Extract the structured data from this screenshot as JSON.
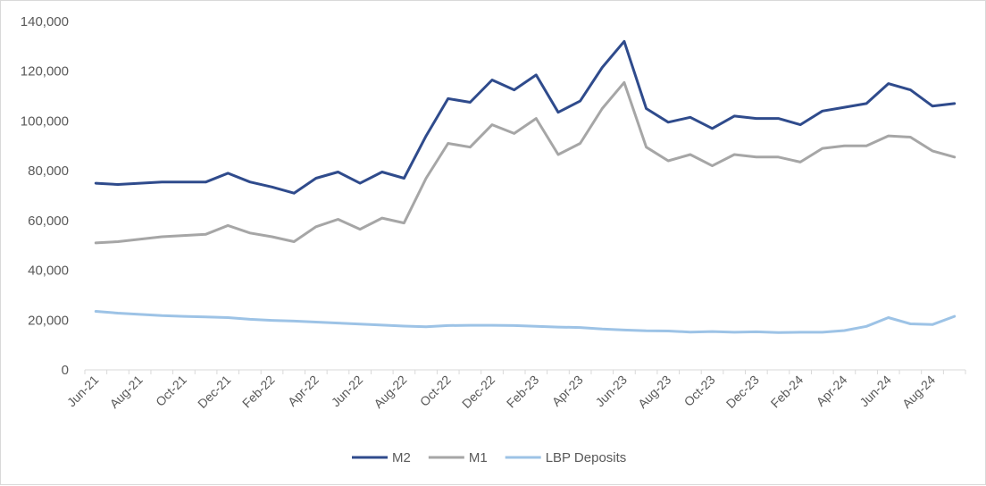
{
  "chart_data": {
    "type": "line",
    "title": "",
    "xlabel": "",
    "ylabel": "",
    "ylim": [
      0,
      140000
    ],
    "y_ticks": [
      0,
      20000,
      40000,
      60000,
      80000,
      100000,
      120000,
      140000
    ],
    "y_tick_labels": [
      "0",
      "20,000",
      "40,000",
      "60,000",
      "80,000",
      "100,000",
      "120,000",
      "140,000"
    ],
    "x": [
      "Jun-21",
      "Jul-21",
      "Aug-21",
      "Sep-21",
      "Oct-21",
      "Nov-21",
      "Dec-21",
      "Jan-22",
      "Feb-22",
      "Mar-22",
      "Apr-22",
      "May-22",
      "Jun-22",
      "Jul-22",
      "Aug-22",
      "Sep-22",
      "Oct-22",
      "Nov-22",
      "Dec-22",
      "Jan-23",
      "Feb-23",
      "Mar-23",
      "Apr-23",
      "May-23",
      "Jun-23",
      "Jul-23",
      "Aug-23",
      "Sep-23",
      "Oct-23",
      "Nov-23",
      "Dec-23",
      "Jan-24",
      "Feb-24",
      "Mar-24",
      "Apr-24",
      "May-24",
      "Jun-24",
      "Jul-24",
      "Aug-24",
      "Sep-24"
    ],
    "x_tick_labels": [
      "Jun-21",
      "Aug-21",
      "Oct-21",
      "Dec-21",
      "Feb-22",
      "Apr-22",
      "Jun-22",
      "Aug-22",
      "Oct-22",
      "Dec-22",
      "Feb-23",
      "Apr-23",
      "Jun-23",
      "Aug-23",
      "Oct-23",
      "Dec-23",
      "Feb-24",
      "Apr-24",
      "Jun-24",
      "Aug-24"
    ],
    "grid": false,
    "legend_position": "bottom",
    "series": [
      {
        "name": "M2",
        "color": "#2f4b8c",
        "values": [
          75000,
          74500,
          75000,
          75500,
          75500,
          75500,
          79000,
          75500,
          73500,
          71000,
          77000,
          79500,
          75000,
          79500,
          77000,
          94000,
          109000,
          107500,
          116500,
          112500,
          118500,
          103500,
          108000,
          121500,
          132000,
          105000,
          99500,
          101500,
          97000,
          102000,
          101000,
          101000,
          98500,
          104000,
          105500,
          107000,
          115000,
          112500,
          106000,
          107000
        ],
        "line_width": 3
      },
      {
        "name": "M1",
        "color": "#a6a6a6",
        "values": [
          51000,
          51500,
          52500,
          53500,
          54000,
          54500,
          58000,
          55000,
          53500,
          51500,
          57500,
          60500,
          56500,
          61000,
          59000,
          77000,
          91000,
          89500,
          98500,
          95000,
          101000,
          86500,
          91000,
          105000,
          115500,
          89500,
          84000,
          86500,
          82000,
          86500,
          85500,
          85500,
          83500,
          89000,
          90000,
          90000,
          94000,
          93500,
          88000,
          85500
        ],
        "line_width": 3
      },
      {
        "name": "LBP Deposits",
        "color": "#9dc3e6",
        "values": [
          23500,
          22800,
          22300,
          21800,
          21500,
          21300,
          21000,
          20300,
          19900,
          19600,
          19200,
          18800,
          18400,
          18000,
          17600,
          17300,
          17800,
          17900,
          17900,
          17800,
          17500,
          17200,
          17000,
          16400,
          16000,
          15700,
          15600,
          15200,
          15400,
          15100,
          15300,
          15000,
          15100,
          15100,
          15800,
          17500,
          21000,
          18500,
          18200,
          21500
        ],
        "line_width": 3
      }
    ]
  }
}
